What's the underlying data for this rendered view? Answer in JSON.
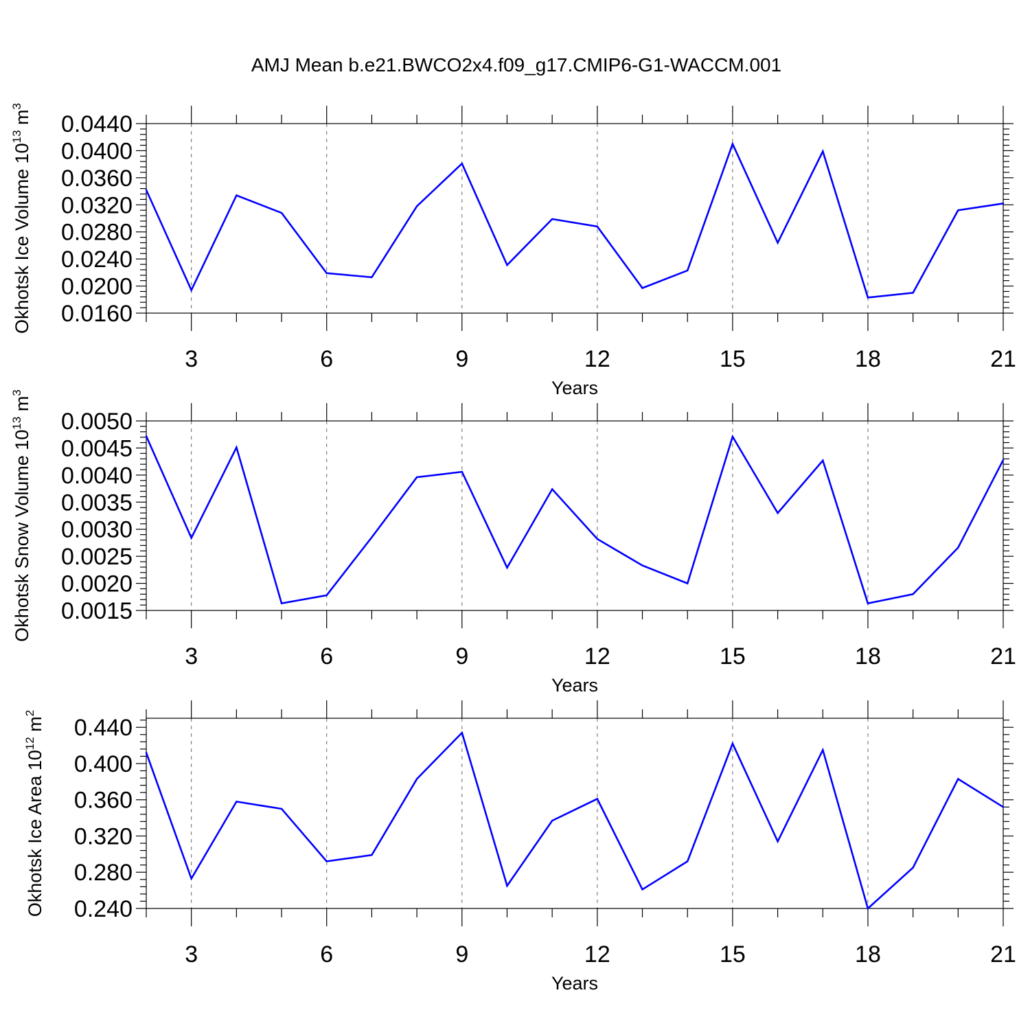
{
  "title": "AMJ Mean b.e21.BWCO2x4.f09_g17.CMIP6-G1-WACCM.001",
  "colors": {
    "series": "#0000ff",
    "axes": "#000000",
    "grid": "#666666"
  },
  "chart_data": [
    {
      "type": "line",
      "ylabel": "Okhotsk Ice Volume 10",
      "ylabel_exp": "13",
      "ylabel_unit": "m",
      "ylabel_unit_exp": "3",
      "xlabel": "Years",
      "xlim": [
        2,
        21
      ],
      "ylim": [
        0.016,
        0.044
      ],
      "xticks": [
        3,
        6,
        9,
        12,
        15,
        18,
        21
      ],
      "yticks": [
        "0.0160",
        "0.0200",
        "0.0240",
        "0.0280",
        "0.0320",
        "0.0360",
        "0.0400",
        "0.0440"
      ],
      "grid": "dashed vertical at major x ticks",
      "x": [
        2,
        3,
        4,
        5,
        6,
        7,
        8,
        9,
        10,
        11,
        12,
        13,
        14,
        15,
        16,
        17,
        18,
        19,
        20,
        21
      ],
      "values": [
        0.0342,
        0.0194,
        0.0334,
        0.0308,
        0.0219,
        0.0213,
        0.0318,
        0.0381,
        0.0231,
        0.0299,
        0.0288,
        0.0197,
        0.0223,
        0.041,
        0.0264,
        0.0399,
        0.0183,
        0.019,
        0.0312,
        0.0322
      ]
    },
    {
      "type": "line",
      "ylabel": "Okhotsk Snow Volume 10",
      "ylabel_exp": "13",
      "ylabel_unit": "m",
      "ylabel_unit_exp": "3",
      "xlabel": "Years",
      "xlim": [
        2,
        21
      ],
      "ylim": [
        0.0015,
        0.005
      ],
      "xticks": [
        3,
        6,
        9,
        12,
        15,
        18,
        21
      ],
      "yticks": [
        "0.0015",
        "0.0020",
        "0.0025",
        "0.0030",
        "0.0035",
        "0.0040",
        "0.0045",
        "0.0050"
      ],
      "grid": "dashed vertical at major x ticks",
      "x": [
        2,
        3,
        4,
        5,
        6,
        7,
        8,
        9,
        10,
        11,
        12,
        13,
        14,
        15,
        16,
        17,
        18,
        19,
        20,
        21
      ],
      "values": [
        0.00472,
        0.00284,
        0.00451,
        0.00163,
        0.00178,
        0.00285,
        0.00396,
        0.00406,
        0.00229,
        0.00374,
        0.00282,
        0.00233,
        0.002,
        0.00471,
        0.0033,
        0.00427,
        0.00163,
        0.0018,
        0.00266,
        0.00428
      ]
    },
    {
      "type": "line",
      "ylabel": "Okhotsk Ice Area 10",
      "ylabel_exp": "12",
      "ylabel_unit": "m",
      "ylabel_unit_exp": "2",
      "xlabel": "Years",
      "xlim": [
        2,
        21
      ],
      "ylim": [
        0.24,
        0.45
      ],
      "xticks": [
        3,
        6,
        9,
        12,
        15,
        18,
        21
      ],
      "yticks": [
        "0.240",
        "0.280",
        "0.320",
        "0.360",
        "0.400",
        "0.440"
      ],
      "grid": "dashed vertical at major x ticks",
      "x": [
        2,
        3,
        4,
        5,
        6,
        7,
        8,
        9,
        10,
        11,
        12,
        13,
        14,
        15,
        16,
        17,
        18,
        19,
        20,
        21
      ],
      "values": [
        0.412,
        0.273,
        0.358,
        0.35,
        0.292,
        0.299,
        0.383,
        0.434,
        0.265,
        0.337,
        0.361,
        0.261,
        0.292,
        0.422,
        0.314,
        0.415,
        0.24,
        0.285,
        0.383,
        0.352
      ]
    }
  ]
}
